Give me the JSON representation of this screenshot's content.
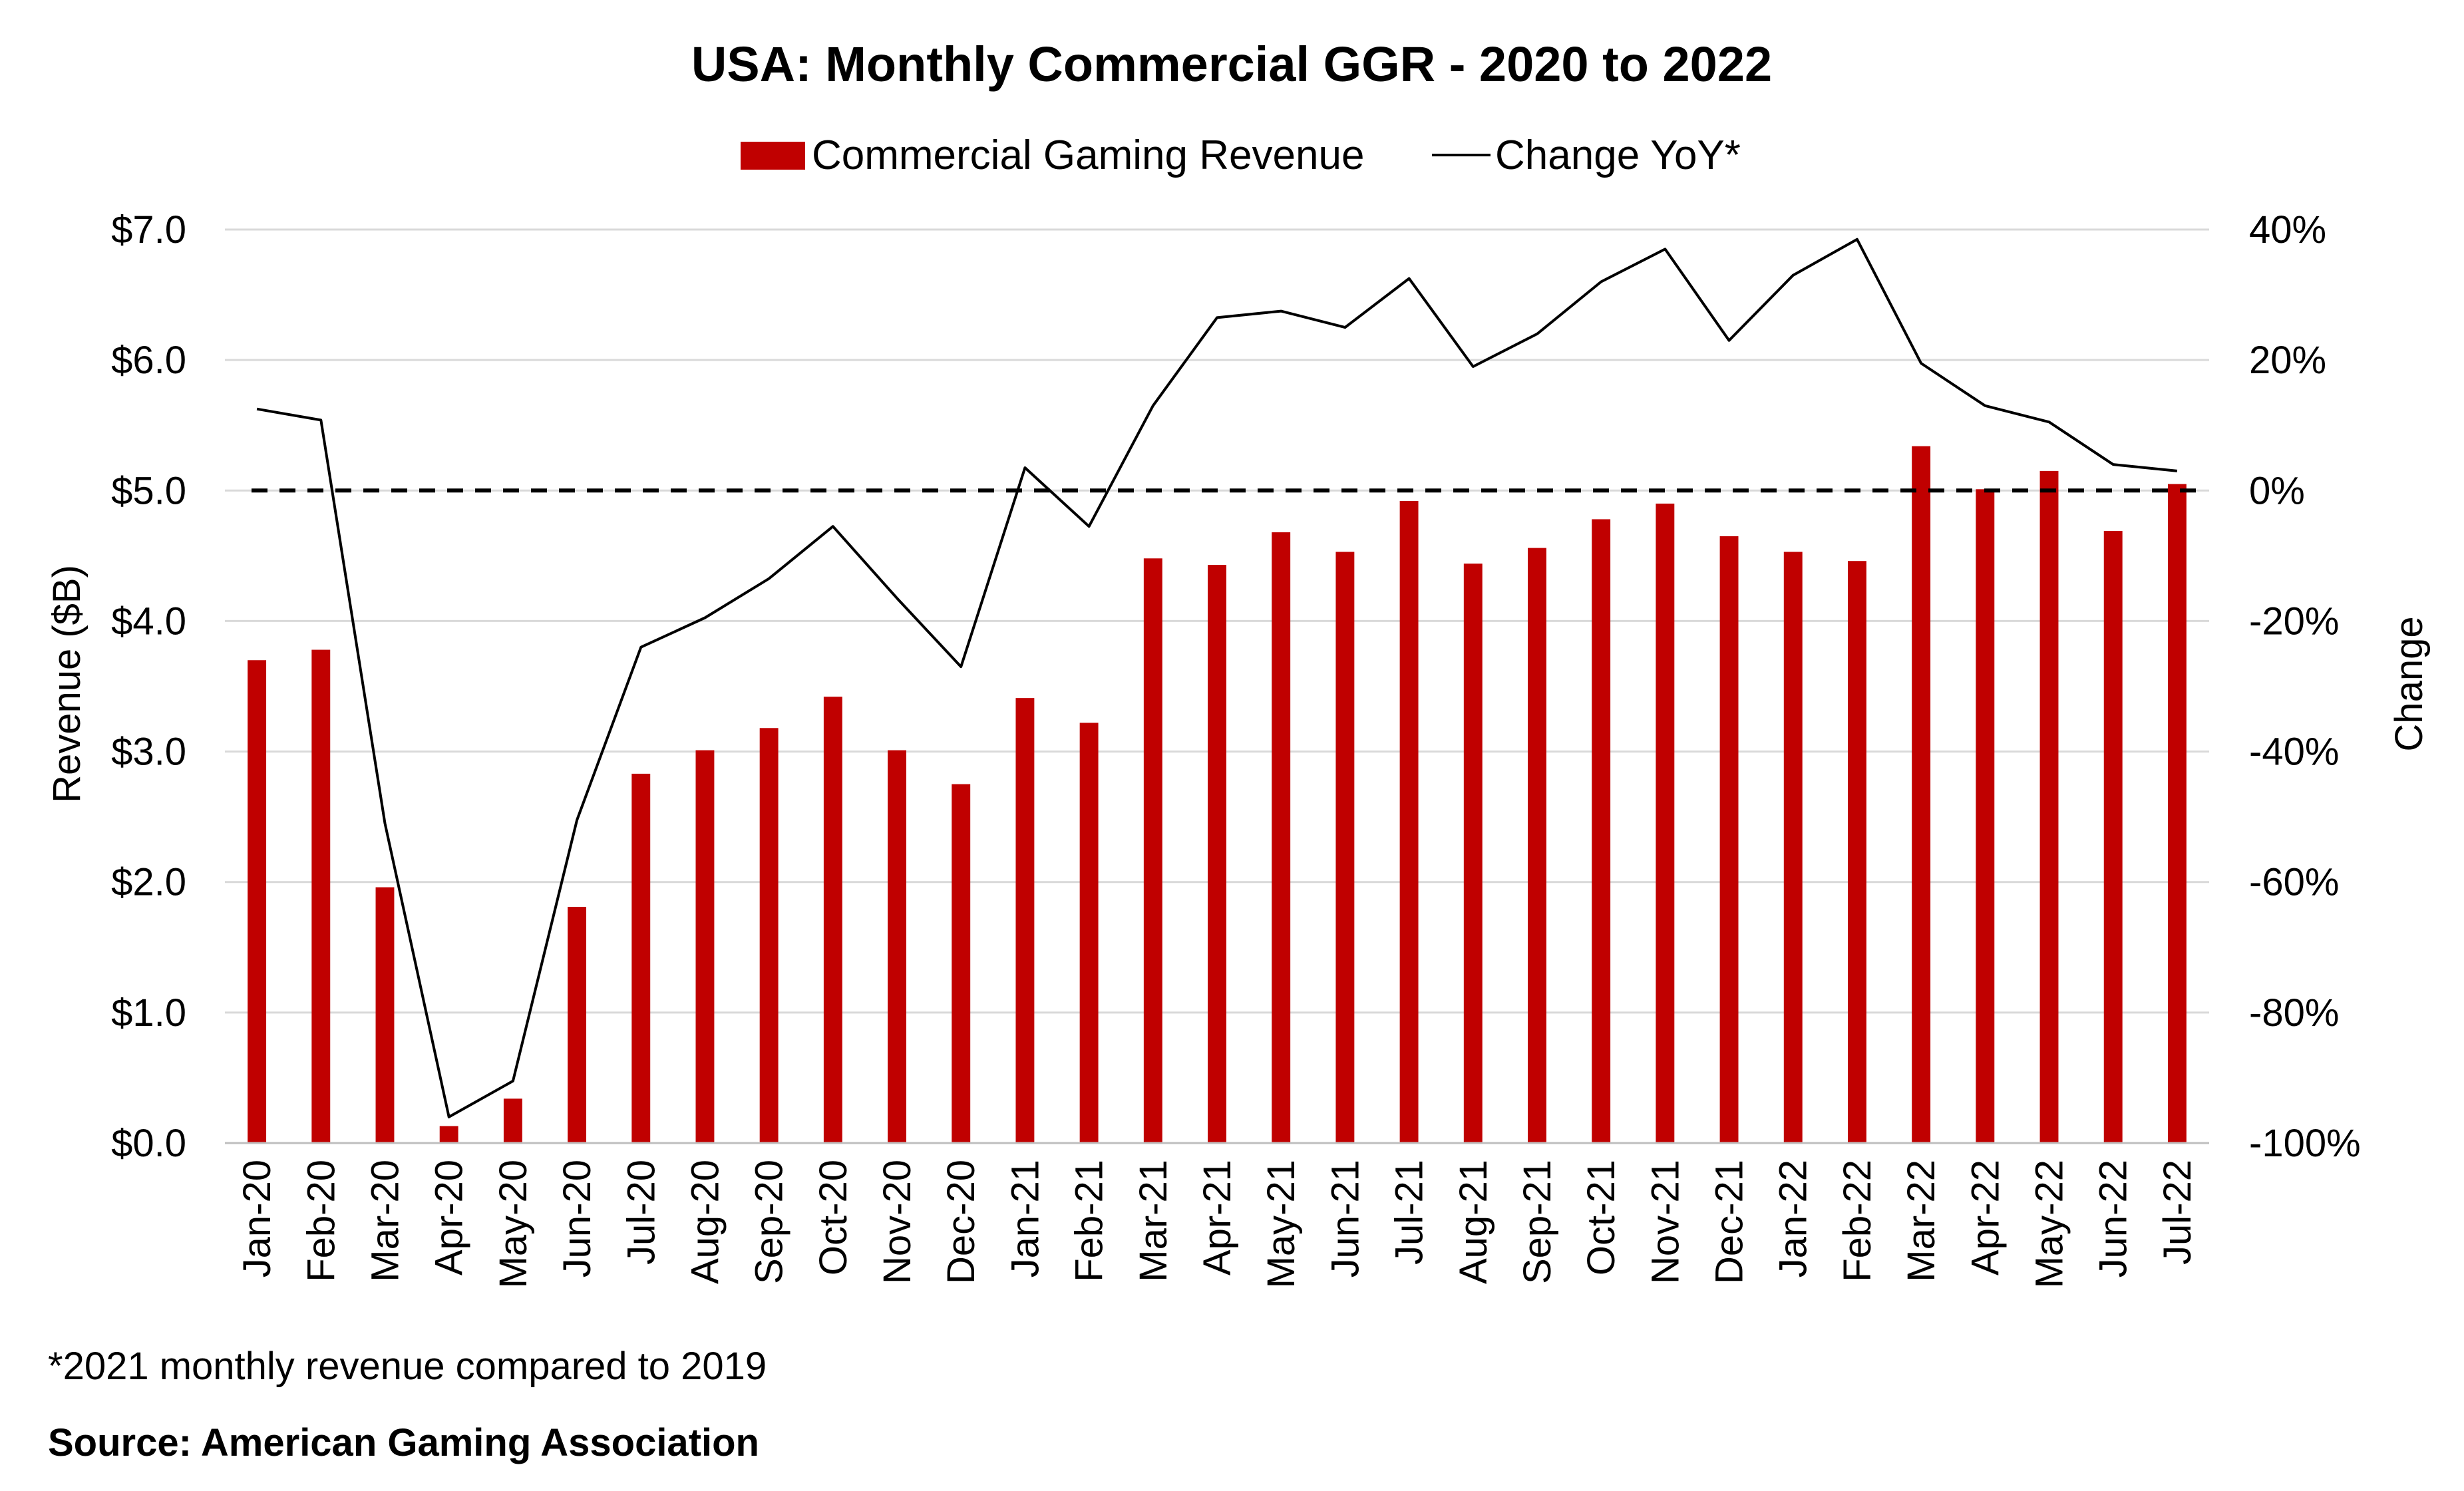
{
  "chart_data": {
    "type": "bar",
    "title": "USA: Monthly Commercial GGR - 2020 to 2022",
    "categories": [
      "Jan-20",
      "Feb-20",
      "Mar-20",
      "Apr-20",
      "May-20",
      "Jun-20",
      "Jul-20",
      "Aug-20",
      "Sep-20",
      "Oct-20",
      "Nov-20",
      "Dec-20",
      "Jan-21",
      "Feb-21",
      "Mar-21",
      "Apr-21",
      "May-21",
      "Jun-21",
      "Jul-21",
      "Aug-21",
      "Sep-21",
      "Oct-21",
      "Nov-21",
      "Dec-21",
      "Jan-22",
      "Feb-22",
      "Mar-22",
      "Apr-22",
      "May-22",
      "Jun-22",
      "Jul-22"
    ],
    "series": [
      {
        "name": "Commercial Gaming Revenue",
        "type": "bar",
        "axis": "left",
        "color": "#c00000",
        "values": [
          3.7,
          3.78,
          1.96,
          0.13,
          0.34,
          1.81,
          2.83,
          3.01,
          3.18,
          3.42,
          3.01,
          2.75,
          3.41,
          3.22,
          4.48,
          4.43,
          4.68,
          4.53,
          4.92,
          4.44,
          4.56,
          4.78,
          4.9,
          4.65,
          4.53,
          4.46,
          5.34,
          5.01,
          5.15,
          4.69,
          5.05
        ]
      },
      {
        "name": "Change YoY*",
        "type": "line",
        "axis": "right",
        "color": "#000000",
        "values": [
          12.5,
          10.8,
          -51.0,
          -96.0,
          -90.5,
          -50.5,
          -24.0,
          -19.5,
          -13.5,
          -5.5,
          -16.5,
          -27.0,
          3.5,
          -5.5,
          13.0,
          26.5,
          27.5,
          25.0,
          32.5,
          19.0,
          24.0,
          32.0,
          37.0,
          23.0,
          33.0,
          38.5,
          19.5,
          13.0,
          10.5,
          4.0,
          3.0
        ]
      }
    ],
    "y_left": {
      "label": "Revenue ($B)",
      "min": 0,
      "max": 7,
      "ticks": [
        0,
        1,
        2,
        3,
        4,
        5,
        6,
        7
      ],
      "tick_labels": [
        "$0.0",
        "$1.0",
        "$2.0",
        "$3.0",
        "$4.0",
        "$5.0",
        "$6.0",
        "$7.0"
      ]
    },
    "y_right": {
      "label": "Change",
      "min": -100,
      "max": 40,
      "ticks": [
        -100,
        -80,
        -60,
        -40,
        -20,
        0,
        20,
        40
      ],
      "tick_labels": [
        "-100%",
        "-80%",
        "-60%",
        "-40%",
        "-20%",
        "0%",
        "20%",
        "40%"
      ]
    },
    "reference_line": {
      "axis": "right",
      "value": 0,
      "style": "dashed"
    },
    "grid": true,
    "legend_position": "top-center",
    "footnote": "*2021 monthly revenue compared to 2019",
    "source": "Source: American Gaming Association"
  }
}
